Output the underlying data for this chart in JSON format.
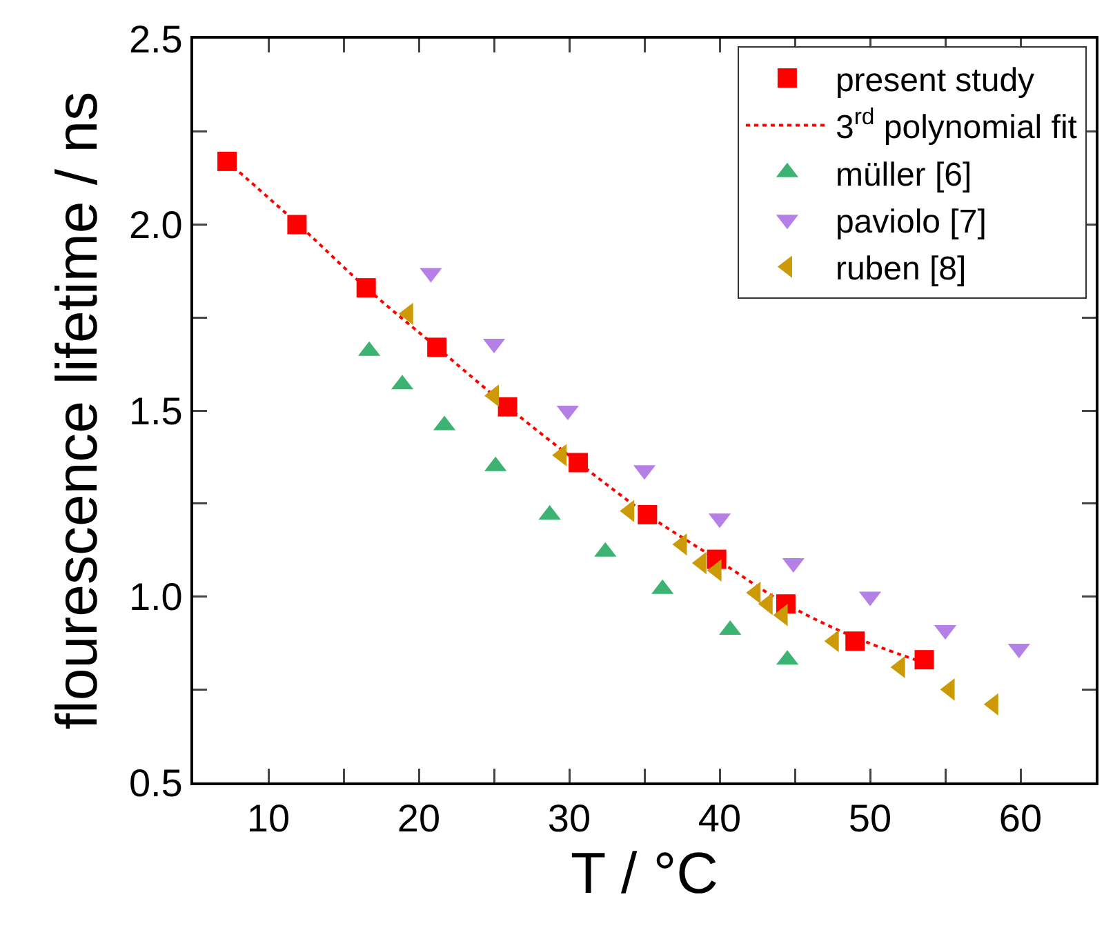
{
  "chart_data": {
    "type": "scatter",
    "xlabel": "T / °C",
    "ylabel": "flourescence lifetime / ns",
    "xlim": [
      5,
      65
    ],
    "ylim": [
      0.5,
      2.5
    ],
    "xticks": [
      10,
      {
        "value": 15,
        "label": null
      },
      20,
      {
        "value": 25,
        "label": null
      },
      30,
      {
        "value": 35,
        "label": null
      },
      40,
      {
        "value": 45,
        "label": null
      },
      50,
      {
        "value": 55,
        "label": null
      },
      60
    ],
    "yticks": [
      0.5,
      {
        "value": 0.75,
        "label": null
      },
      {
        "value": 1.0,
        "label": "1.0"
      },
      {
        "value": 1.25,
        "label": null
      },
      1.5,
      {
        "value": 1.75,
        "label": null
      },
      {
        "value": 2.0,
        "label": "2.0"
      },
      {
        "value": 2.25,
        "label": null
      },
      2.5
    ],
    "grid": false,
    "legend": "top right",
    "series": [
      {
        "name": "present study",
        "type": "scatter",
        "marker": "square",
        "color": "#ff0000",
        "x": [
          7.25,
          11.9,
          16.5,
          21.2,
          25.9,
          30.6,
          35.2,
          39.8,
          44.4,
          49.0,
          53.6
        ],
        "values": [
          2.17,
          2.0,
          1.83,
          1.67,
          1.51,
          1.36,
          1.22,
          1.1,
          0.98,
          0.88,
          0.83
        ]
      },
      {
        "name": "3$^{rd}$ polynomial fit",
        "type": "line",
        "marker": "none",
        "line_style": "dotted",
        "color": "#ff0000",
        "x": [
          7.25,
          12,
          16.5,
          21.2,
          25.9,
          30.6,
          35.2,
          39.8,
          44.4,
          49,
          53
        ],
        "values": [
          2.17,
          2.0,
          1.83,
          1.67,
          1.51,
          1.36,
          1.22,
          1.1,
          0.98,
          0.89,
          0.83
        ]
      },
      {
        "name": "müller [6]",
        "type": "scatter",
        "marker": "triangle",
        "color": "#3cb371",
        "x": [
          16.7,
          18.9,
          21.7,
          25.1,
          28.7,
          32.4,
          36.2,
          40.7,
          44.5
        ],
        "values": [
          1.66,
          1.57,
          1.46,
          1.35,
          1.22,
          1.12,
          1.02,
          0.91,
          0.83
        ]
      },
      {
        "name": "paviolo [7]",
        "type": "scatter",
        "marker": "triangle-down",
        "color": "#b47fe6",
        "x": [
          20.8,
          25.0,
          29.9,
          35.0,
          40.0,
          44.9,
          50.0,
          55.0,
          59.9
        ],
        "values": [
          1.87,
          1.68,
          1.5,
          1.34,
          1.21,
          1.09,
          1.0,
          0.91,
          0.86
        ]
      },
      {
        "name": "ruben [8]",
        "type": "scatter",
        "marker": "triangle-left",
        "color": "#cc9a06",
        "x": [
          19.3,
          25.0,
          29.5,
          34.0,
          37.5,
          38.8,
          39.8,
          42.4,
          43.2,
          44.2,
          47.6,
          52.0,
          55.3,
          58.2
        ],
        "values": [
          1.76,
          1.54,
          1.38,
          1.23,
          1.14,
          1.09,
          1.07,
          1.01,
          0.98,
          0.95,
          0.88,
          0.81,
          0.75,
          0.71
        ]
      }
    ]
  }
}
